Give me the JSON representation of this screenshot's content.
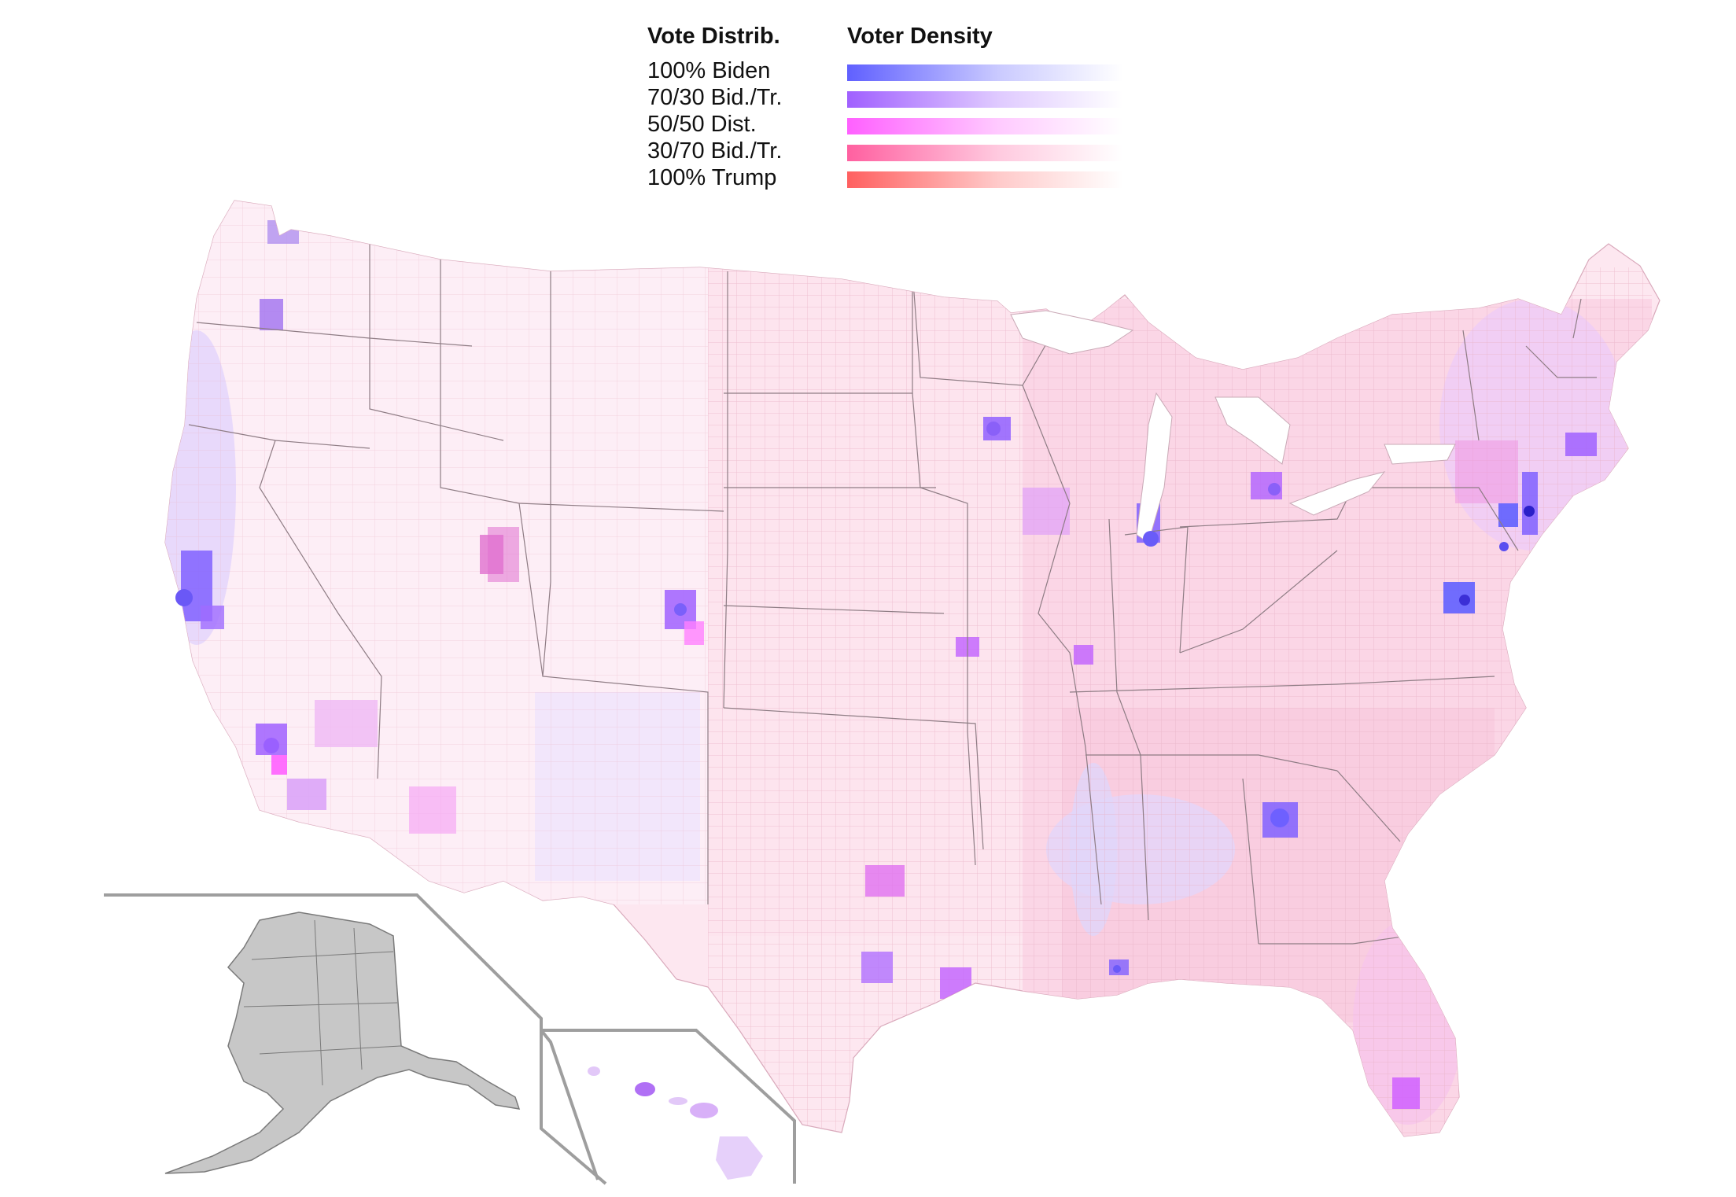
{
  "legend": {
    "vote_title": "Vote Distrib.",
    "density_title": "Voter Density",
    "items": [
      {
        "label": "100% Biden",
        "color": "#6060ff"
      },
      {
        "label": "70/30 Bid./Tr.",
        "color": "#a060ff"
      },
      {
        "label": "50/50 Dist.",
        "color": "#ff60ff"
      },
      {
        "label": "30/70 Bid./Tr.",
        "color": "#ff60a0"
      },
      {
        "label": "100% Trump",
        "color": "#ff6060"
      }
    ]
  },
  "colors": {
    "base_fill": "#fde6f0",
    "county_line": "#e8b8c8",
    "state_border": "#8a7a80",
    "inset_fill": "#c8c8c8",
    "inset_frame": "#a0a0a0"
  },
  "regions": [
    "contiguous-us",
    "alaska-inset",
    "hawaii-inset"
  ],
  "metro_hotspots": [
    {
      "name": "seattle",
      "color": "#a060ff"
    },
    {
      "name": "portland",
      "color": "#a060ff"
    },
    {
      "name": "san-francisco-bay",
      "color": "#8060ff"
    },
    {
      "name": "los-angeles",
      "color": "#a060ff"
    },
    {
      "name": "denver",
      "color": "#a060ff"
    },
    {
      "name": "minneapolis",
      "color": "#a060ff"
    },
    {
      "name": "chicago",
      "color": "#8060ff"
    },
    {
      "name": "detroit",
      "color": "#b060ff"
    },
    {
      "name": "atlanta",
      "color": "#8060ff"
    },
    {
      "name": "washington-dc",
      "color": "#6060ff"
    },
    {
      "name": "new-york",
      "color": "#6060ff"
    },
    {
      "name": "philadelphia",
      "color": "#8060ff"
    },
    {
      "name": "boston",
      "color": "#a060ff"
    },
    {
      "name": "houston",
      "color": "#c060ff"
    },
    {
      "name": "dallas",
      "color": "#c060ff"
    },
    {
      "name": "austin",
      "color": "#c060ff"
    },
    {
      "name": "miami",
      "color": "#d060ff"
    },
    {
      "name": "new-orleans",
      "color": "#a060ff"
    },
    {
      "name": "salt-lake-city",
      "color": "#e060e0"
    },
    {
      "name": "kansas-city",
      "color": "#c060ff"
    },
    {
      "name": "st-louis",
      "color": "#c060ff"
    }
  ]
}
